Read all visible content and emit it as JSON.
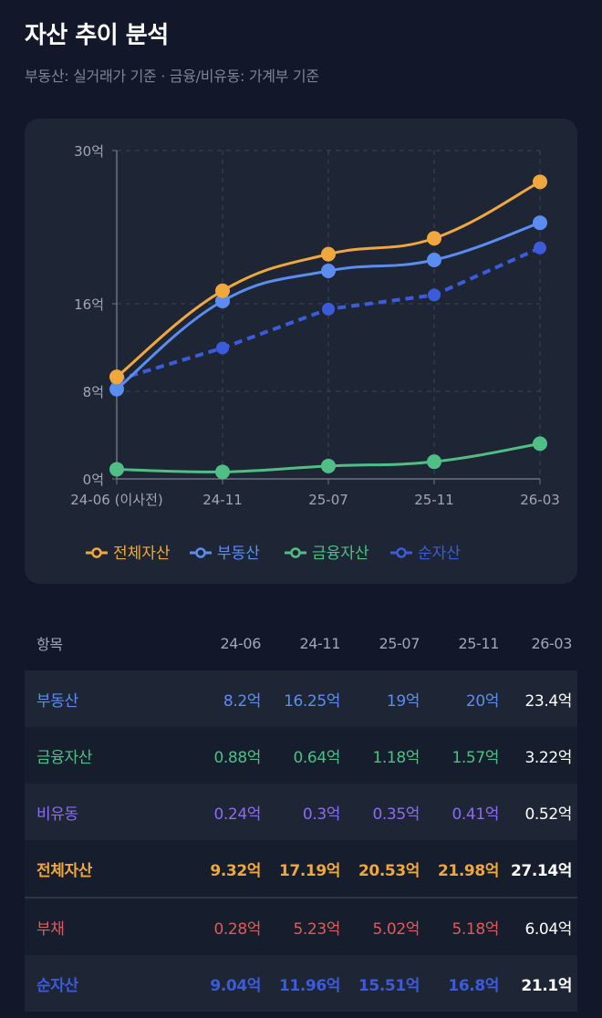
{
  "header": {
    "title": "자산 추이 분석",
    "subtitle": "부동산: 실거래가 기준 · 금융/비유동: 가계부 기준"
  },
  "chart_data": {
    "type": "line",
    "categories": [
      "24-06 (이사전)",
      "24-11",
      "25-07",
      "25-11",
      "26-03"
    ],
    "y_ticks": [
      0,
      8,
      16,
      30
    ],
    "y_tick_labels": [
      "0억",
      "8억",
      "16억",
      "30억"
    ],
    "ylim": [
      0,
      30
    ],
    "grid": true,
    "legend_position": "bottom",
    "series": [
      {
        "name": "전체자산",
        "values": [
          9.32,
          17.19,
          20.53,
          21.98,
          27.14
        ],
        "color": "#f0a83e",
        "dashed": false
      },
      {
        "name": "부동산",
        "values": [
          8.2,
          16.25,
          19,
          20,
          23.4
        ],
        "color": "#5b8df0",
        "dashed": false
      },
      {
        "name": "금융자산",
        "values": [
          0.88,
          0.64,
          1.18,
          1.57,
          3.22
        ],
        "color": "#4fbf85",
        "dashed": false
      },
      {
        "name": "순자산",
        "values": [
          9.04,
          11.96,
          15.51,
          16.8,
          21.1
        ],
        "color": "#3b5bdb",
        "dashed": true
      }
    ]
  },
  "table": {
    "headers": [
      "항목",
      "24-06",
      "24-11",
      "25-07",
      "25-11",
      "26-03"
    ],
    "rows": [
      {
        "label": "부동산",
        "color": "#5b8df0",
        "bold": false,
        "values": [
          "8.2억",
          "16.25억",
          "19억",
          "20억",
          "23.4억"
        ]
      },
      {
        "label": "금융자산",
        "color": "#4fbf85",
        "bold": false,
        "values": [
          "0.88억",
          "0.64억",
          "1.18억",
          "1.57억",
          "3.22억"
        ]
      },
      {
        "label": "비유동",
        "color": "#8b6cf0",
        "bold": false,
        "values": [
          "0.24억",
          "0.3억",
          "0.35억",
          "0.41억",
          "0.52억"
        ]
      },
      {
        "label": "전체자산",
        "color": "#f0a83e",
        "bold": true,
        "values": [
          "9.32억",
          "17.19억",
          "20.53억",
          "21.98억",
          "27.14억"
        ]
      },
      {
        "label": "부채",
        "color": "#e05a5a",
        "bold": false,
        "values": [
          "0.28억",
          "5.23억",
          "5.02억",
          "5.18억",
          "6.04억"
        ]
      },
      {
        "label": "순자산",
        "color": "#3b5bdb",
        "bold": true,
        "values": [
          "9.04억",
          "11.96억",
          "15.51억",
          "16.8억",
          "21.1억"
        ]
      }
    ]
  }
}
